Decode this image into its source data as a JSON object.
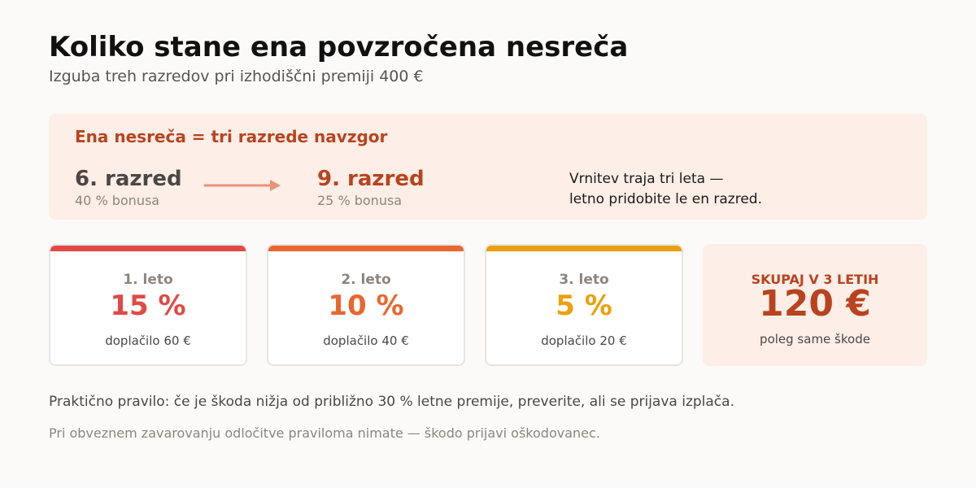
{
  "header": {
    "title": "Koliko stane ena povzročena nesreča",
    "subtitle": "Izguba treh razredov pri izhodiščni premiji 400 €"
  },
  "banner": {
    "heading": "Ena nesreča = tri razrede navzgor",
    "from_class": {
      "name": "6. razred",
      "bonus": "40 % bonusa"
    },
    "to_class": {
      "name": "9. razred",
      "bonus": "25 % bonusa"
    },
    "note_line1": "Vrnitev traja tri leta —",
    "note_line2": "letno pridobite le en razred."
  },
  "years": [
    {
      "label": "1. leto",
      "percent": "15 %",
      "surcharge": "doplačilo 60 €",
      "color": "#e04a45"
    },
    {
      "label": "2. leto",
      "percent": "10 %",
      "surcharge": "doplačilo 40 €",
      "color": "#e8672e"
    },
    {
      "label": "3. leto",
      "percent": "5 %",
      "surcharge": "doplačilo 20 €",
      "color": "#eaa10d"
    }
  ],
  "total": {
    "label": "SKUPAJ V 3 LETIH",
    "amount": "120 €",
    "note": "poleg same škode"
  },
  "footer": {
    "rule": "Praktično pravilo: če je škoda nižja od približno 30 % letne premije, preverite, ali se prijava izplača.",
    "note": "Pri obveznem zavarovanju odločitve praviloma nimate — škodo prijavi oškodovanec."
  },
  "colors": {
    "accent": "#b8441f",
    "banner_bg": "#fdeee7",
    "arrow": "#e8937a"
  }
}
